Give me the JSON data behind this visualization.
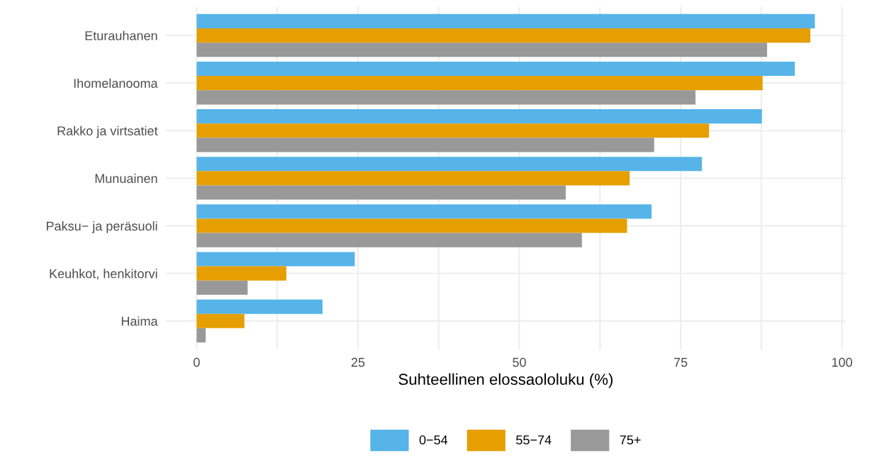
{
  "chart_data": {
    "type": "bar",
    "orientation": "horizontal",
    "xlabel": "Suhteellinen elossaololuku (%)",
    "categories": [
      "Eturauhanen",
      "Ihomelanooma",
      "Rakko ja virtsatiet",
      "Munuainen",
      "Paksu− ja peräsuoli",
      "Keuhkot, henkitorvi",
      "Haima"
    ],
    "series": [
      {
        "name": "0−54",
        "color": "#56b4e9",
        "values": [
          95.8,
          92.7,
          87.6,
          78.3,
          70.5,
          24.5,
          19.5
        ]
      },
      {
        "name": "55−74",
        "color": "#e69f00",
        "values": [
          95.1,
          87.7,
          79.4,
          67.1,
          66.7,
          13.9,
          7.4
        ]
      },
      {
        "name": "75+",
        "color": "#999999",
        "values": [
          88.4,
          77.3,
          70.9,
          57.2,
          59.7,
          7.9,
          1.4
        ]
      }
    ],
    "xlim": [
      -4.8,
      100.6
    ],
    "xticks": [
      0,
      {
        "value": 12.5,
        "label": null
      },
      25,
      {
        "value": 37.5,
        "label": null
      },
      50,
      {
        "value": 62.5,
        "label": null
      },
      75,
      {
        "value": 87.5,
        "label": null
      },
      100
    ],
    "grid": true,
    "legend": "bottom"
  }
}
